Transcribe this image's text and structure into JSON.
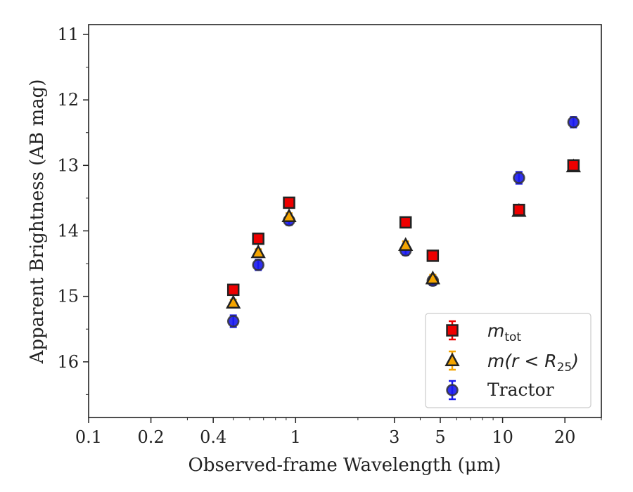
{
  "chart_data": {
    "type": "scatter",
    "title": "",
    "xlabel": "Observed-frame Wavelength (μm)",
    "ylabel": "Apparent Brightness (AB mag)",
    "xscale": "log",
    "xlim": [
      0.1,
      30
    ],
    "ylim": [
      16.85,
      10.85
    ],
    "y_inverted": true,
    "grid": false,
    "legend_position": "lower-right",
    "x_ticks": [
      {
        "value": 0.1,
        "label": "0.1"
      },
      {
        "value": 0.2,
        "label": "0.2"
      },
      {
        "value": 0.4,
        "label": "0.4"
      },
      {
        "value": 1,
        "label": "1"
      },
      {
        "value": 3,
        "label": "3"
      },
      {
        "value": 5,
        "label": "5"
      },
      {
        "value": 10,
        "label": "10"
      },
      {
        "value": 20,
        "label": "20"
      }
    ],
    "y_ticks": [
      {
        "value": 11,
        "label": "11"
      },
      {
        "value": 12,
        "label": "12"
      },
      {
        "value": 13,
        "label": "13"
      },
      {
        "value": 14,
        "label": "14"
      },
      {
        "value": 15,
        "label": "15"
      },
      {
        "value": 16,
        "label": "16"
      }
    ],
    "series": [
      {
        "name": "m_tot",
        "legend_main": "m",
        "legend_sub": "tot",
        "marker": "square",
        "color": "#ee0000",
        "points": [
          {
            "x": 0.5,
            "y": 14.9,
            "err": 0.05
          },
          {
            "x": 0.66,
            "y": 14.12,
            "err": 0.05
          },
          {
            "x": 0.93,
            "y": 13.57,
            "err": 0.05
          },
          {
            "x": 3.4,
            "y": 13.87,
            "err": 0.06
          },
          {
            "x": 4.6,
            "y": 14.38,
            "err": 0.06
          },
          {
            "x": 12.0,
            "y": 13.68,
            "err": 0.06
          },
          {
            "x": 22.0,
            "y": 13.0,
            "err": 0.06
          }
        ]
      },
      {
        "name": "m(r < R_25)",
        "legend_main": "m(r < R",
        "legend_sub": "25",
        "legend_tail": ")",
        "marker": "triangle",
        "color": "#f5a500",
        "points": [
          {
            "x": 0.5,
            "y": 15.1,
            "err": 0.05
          },
          {
            "x": 0.66,
            "y": 14.33,
            "err": 0.05
          },
          {
            "x": 0.93,
            "y": 13.78,
            "err": 0.05
          },
          {
            "x": 3.4,
            "y": 14.22,
            "err": 0.06
          },
          {
            "x": 4.6,
            "y": 14.73,
            "err": 0.06
          },
          {
            "x": 12.0,
            "y": 13.7,
            "err": 0.06
          },
          {
            "x": 22.0,
            "y": 13.02,
            "err": 0.06
          }
        ]
      },
      {
        "name": "Tractor",
        "marker": "circle",
        "color": "#1a1aee",
        "points": [
          {
            "x": 0.5,
            "y": 15.38,
            "err": 0.09
          },
          {
            "x": 0.66,
            "y": 14.52,
            "err": 0.08
          },
          {
            "x": 0.93,
            "y": 13.84,
            "err": 0.07
          },
          {
            "x": 3.4,
            "y": 14.3,
            "err": 0.07
          },
          {
            "x": 4.6,
            "y": 14.76,
            "err": 0.07
          },
          {
            "x": 12.0,
            "y": 13.19,
            "err": 0.09
          },
          {
            "x": 22.0,
            "y": 12.34,
            "err": 0.08
          }
        ]
      }
    ]
  }
}
